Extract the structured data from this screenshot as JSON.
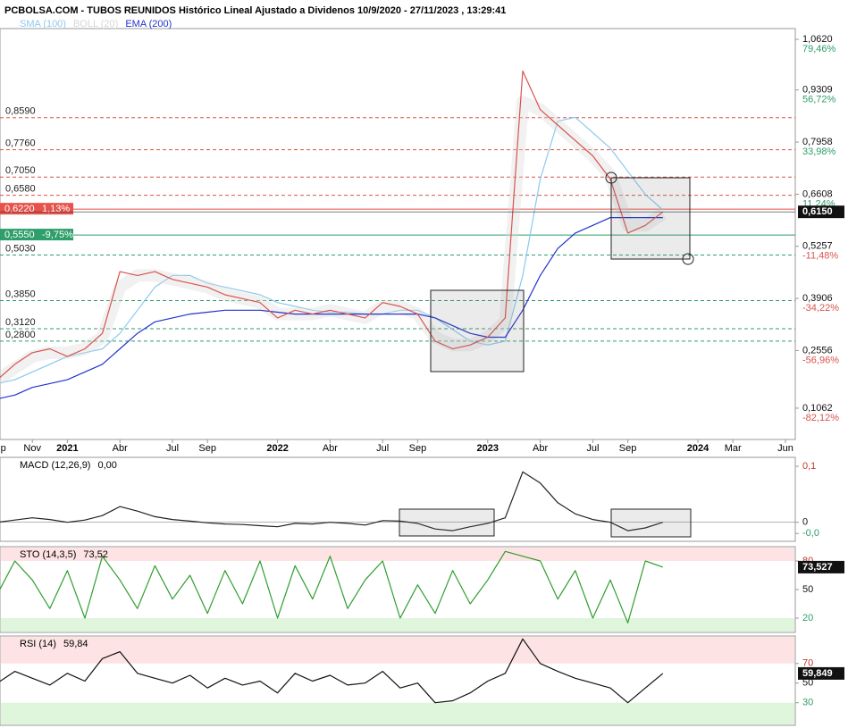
{
  "chart_data": [
    {
      "type": "line",
      "title": "PCBOLSA.COM - TUBOS REUNIDOS Histórico Lineal Ajustado a Dividenos 10/9/2020 - 27/11/2023 , 13:29:41",
      "x": [
        "2020-09",
        "2020-10",
        "2020-11",
        "2020-12",
        "2021-01",
        "2021-02",
        "2021-03",
        "2021-04",
        "2021-05",
        "2021-06",
        "2021-07",
        "2021-08",
        "2021-09",
        "2021-10",
        "2021-11",
        "2021-12",
        "2022-01",
        "2022-02",
        "2022-03",
        "2022-04",
        "2022-05",
        "2022-06",
        "2022-07",
        "2022-08",
        "2022-09",
        "2022-10",
        "2022-11",
        "2022-12",
        "2023-01",
        "2023-02",
        "2023-03",
        "2023-04",
        "2023-05",
        "2023-06",
        "2023-07",
        "2023-08",
        "2023-09",
        "2023-10",
        "2023-11"
      ],
      "values": [
        0.18,
        0.22,
        0.25,
        0.26,
        0.24,
        0.26,
        0.3,
        0.46,
        0.45,
        0.46,
        0.44,
        0.43,
        0.42,
        0.4,
        0.39,
        0.38,
        0.34,
        0.36,
        0.35,
        0.36,
        0.35,
        0.34,
        0.38,
        0.37,
        0.35,
        0.28,
        0.26,
        0.27,
        0.29,
        0.34,
        0.98,
        0.88,
        0.84,
        0.8,
        0.76,
        0.7,
        0.56,
        0.58,
        0.615
      ],
      "color": "#d9534f",
      "series": [
        {
          "name": "SMA (100)",
          "color": "#8cc8ee",
          "values": [
            0.17,
            0.18,
            0.2,
            0.22,
            0.24,
            0.25,
            0.26,
            0.3,
            0.36,
            0.42,
            0.45,
            0.45,
            0.43,
            0.42,
            0.41,
            0.4,
            0.38,
            0.37,
            0.36,
            0.355,
            0.355,
            0.35,
            0.35,
            0.36,
            0.36,
            0.34,
            0.31,
            0.28,
            0.27,
            0.28,
            0.45,
            0.7,
            0.85,
            0.86,
            0.82,
            0.78,
            0.72,
            0.66,
            0.62
          ]
        },
        {
          "name": "BOLL (20)",
          "color": "#d6d6d6",
          "values": [
            0.18,
            0.21,
            0.24,
            0.25,
            0.25,
            0.26,
            0.29,
            0.42,
            0.45,
            0.45,
            0.44,
            0.43,
            0.42,
            0.4,
            0.39,
            0.38,
            0.35,
            0.35,
            0.35,
            0.36,
            0.35,
            0.34,
            0.37,
            0.37,
            0.35,
            0.29,
            0.27,
            0.27,
            0.29,
            0.33,
            0.9,
            0.88,
            0.84,
            0.8,
            0.76,
            0.71,
            0.58,
            0.58,
            0.61
          ]
        },
        {
          "name": "EMA (200)",
          "color": "#2233cc",
          "values": [
            0.13,
            0.14,
            0.16,
            0.17,
            0.18,
            0.2,
            0.22,
            0.26,
            0.3,
            0.33,
            0.34,
            0.35,
            0.355,
            0.36,
            0.36,
            0.36,
            0.355,
            0.35,
            0.35,
            0.35,
            0.35,
            0.35,
            0.35,
            0.35,
            0.35,
            0.34,
            0.32,
            0.3,
            0.29,
            0.29,
            0.36,
            0.45,
            0.52,
            0.56,
            0.58,
            0.6,
            0.6,
            0.6,
            0.6
          ]
        }
      ],
      "xlim": [
        "2020-09",
        "2024-06"
      ],
      "xticks": [
        {
          "value": "2020-09",
          "label": "Sep"
        },
        {
          "value": "2020-11",
          "label": "Nov"
        },
        {
          "value": "2021-01",
          "label": "2021"
        },
        {
          "value": "2021-04",
          "label": "Abr"
        },
        {
          "value": "2021-07",
          "label": "Jul"
        },
        {
          "value": "2021-09",
          "label": "Sep"
        },
        {
          "value": "2022-01",
          "label": "2022"
        },
        {
          "value": "2022-04",
          "label": "Abr"
        },
        {
          "value": "2022-07",
          "label": "Jul"
        },
        {
          "value": "2022-09",
          "label": "Sep"
        },
        {
          "value": "2023-01",
          "label": "2023"
        },
        {
          "value": "2023-04",
          "label": "Abr"
        },
        {
          "value": "2023-07",
          "label": "Jul"
        },
        {
          "value": "2023-09",
          "label": "Sep"
        },
        {
          "value": "2024-01",
          "label": "2024"
        },
        {
          "value": "2024-03",
          "label": "Mar"
        },
        {
          "value": "2024-06",
          "label": "Jun"
        }
      ],
      "ylim": [
        0.025,
        1.09
      ],
      "yticks": [
        {
          "value": 1.062,
          "label": "1,0620"
        },
        {
          "value": 0.9309,
          "label": "0,9309"
        },
        {
          "value": 0.7958,
          "label": "0,7958"
        },
        {
          "value": 0.6608,
          "label": "0,6608"
        },
        {
          "value": 0.5257,
          "label": "0,5257"
        },
        {
          "value": 0.3906,
          "label": "0,3906"
        },
        {
          "value": 0.2556,
          "label": "0,2556"
        },
        {
          "value": 0.1062,
          "label": "0,1062"
        }
      ],
      "ytick_changes": [
        {
          "value": 79.46,
          "label": "79,46%"
        },
        {
          "value": 56.72,
          "label": "56,72%"
        },
        {
          "value": 33.98,
          "label": "33,98%"
        },
        {
          "value": 11.24,
          "label": "11,24%"
        },
        {
          "value": -11.48,
          "label": "-11,48%"
        },
        {
          "value": -34.22,
          "label": "-34,22%"
        },
        {
          "value": -56.96,
          "label": "-56,96%"
        },
        {
          "value": -82.12,
          "label": "-82,12%"
        }
      ],
      "levels": [
        {
          "value": 0.859,
          "label": "0,8590",
          "color": "#d9534f"
        },
        {
          "value": 0.776,
          "label": "0,7760",
          "color": "#d9534f"
        },
        {
          "value": 0.705,
          "label": "0,7050",
          "color": "#d9534f"
        },
        {
          "value": 0.658,
          "label": "0,6580",
          "color": "#d9534f"
        },
        {
          "value": 0.622,
          "label": "0,6220",
          "color": "#e8524a",
          "change": {
            "value": 1.13,
            "label": "1,13%"
          }
        },
        {
          "value": 0.555,
          "label": "0,5550",
          "color": "#2e9e6a",
          "change": {
            "value": -9.75,
            "label": "-9,75%"
          }
        },
        {
          "value": 0.503,
          "label": "0,5030",
          "color": "#2e9e6a"
        },
        {
          "value": 0.385,
          "label": "0,3850",
          "color": "#2e9e6a"
        },
        {
          "value": 0.312,
          "label": "0,3120",
          "color": "#2e9e6a"
        },
        {
          "value": 0.28,
          "label": "0,2800",
          "color": "#2e9e6a"
        }
      ],
      "current_value": {
        "value": 0.615,
        "label": "0,6150"
      }
    },
    {
      "type": "line",
      "title": "MACD (12,26,9)",
      "current_value": {
        "value": 0,
        "label": "0,00"
      },
      "color": "#222222",
      "values": [
        0,
        0.004,
        0.008,
        0.005,
        0,
        0.004,
        0.012,
        0.028,
        0.02,
        0.01,
        0.005,
        0.002,
        -0.001,
        -0.003,
        -0.004,
        -0.006,
        -0.008,
        -0.002,
        -0.003,
        0,
        -0.002,
        -0.005,
        0.003,
        0.002,
        -0.002,
        -0.012,
        -0.015,
        -0.008,
        -0.002,
        0.008,
        0.09,
        0.07,
        0.035,
        0.015,
        0.005,
        0,
        -0.015,
        -0.01,
        0
      ],
      "ylim": [
        -0.034,
        0.116
      ],
      "yticks": [
        {
          "value": 0.1,
          "label": "0,1"
        },
        0,
        {
          "value": -0.02,
          "label": "-0,0"
        }
      ]
    },
    {
      "type": "line",
      "title": "STO (14,3,5)",
      "current_value": {
        "value": 73.52,
        "label": "73,52"
      },
      "color": "#2e9e2e",
      "values": [
        45,
        80,
        60,
        30,
        70,
        20,
        85,
        60,
        30,
        75,
        40,
        65,
        25,
        70,
        35,
        80,
        20,
        75,
        40,
        85,
        30,
        60,
        80,
        20,
        55,
        25,
        70,
        35,
        60,
        90,
        85,
        80,
        40,
        70,
        20,
        60,
        15,
        80,
        73.52
      ],
      "ylim": [
        5,
        95
      ],
      "yticks": [
        80,
        50,
        20
      ],
      "last_box": {
        "value": 73.527,
        "label": "73,527"
      }
    },
    {
      "type": "line",
      "title": "RSI (14)",
      "current_value": {
        "value": 59.84,
        "label": "59,84"
      },
      "color": "#111111",
      "values": [
        50,
        62,
        55,
        48,
        60,
        52,
        75,
        82,
        60,
        55,
        50,
        58,
        45,
        55,
        48,
        52,
        40,
        60,
        52,
        58,
        48,
        50,
        62,
        45,
        50,
        30,
        32,
        40,
        52,
        60,
        95,
        70,
        62,
        55,
        50,
        45,
        30,
        45,
        59.84
      ],
      "ylim": [
        7,
        98
      ],
      "yticks": [
        70,
        50,
        30
      ],
      "last_box": {
        "value": 59.849,
        "label": "59,849"
      }
    }
  ]
}
